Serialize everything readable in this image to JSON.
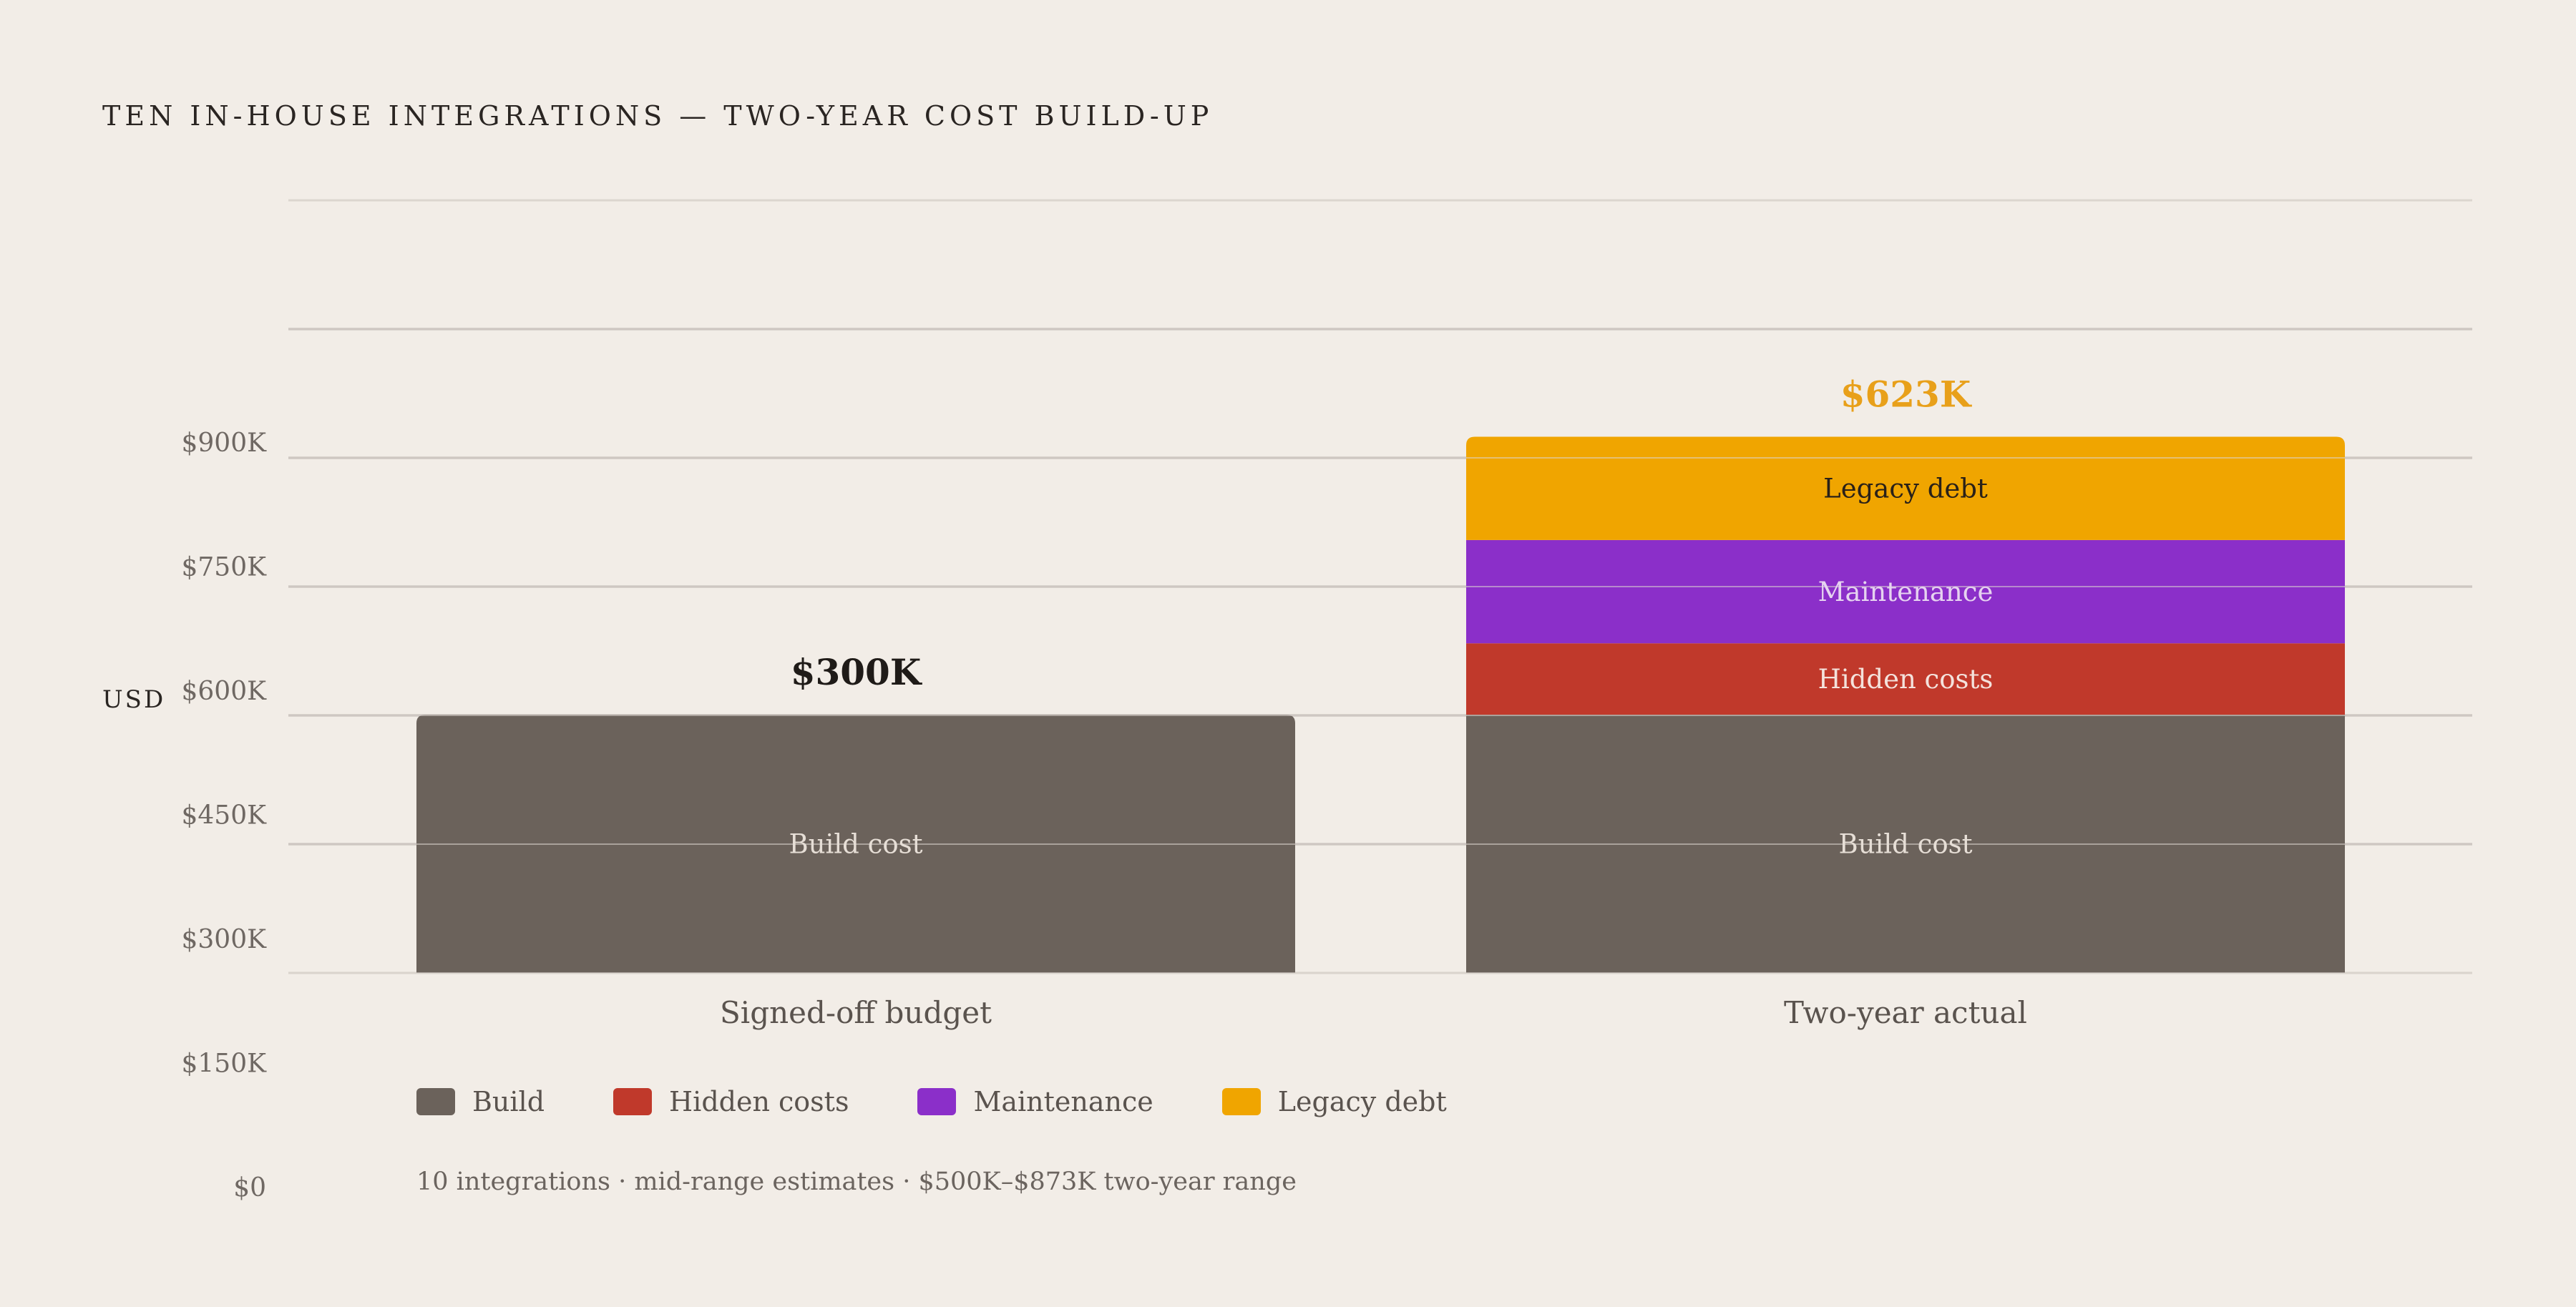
{
  "title": "TEN IN-HOUSE INTEGRATIONS — TWO-YEAR COST BUILD-UP",
  "y_unit": "USD",
  "note": "10 integrations · mid-range estimates · $500K–$873K two-year range",
  "legend": [
    {
      "label": "Build",
      "color": "#6b625b"
    },
    {
      "label": "Hidden costs",
      "color": "#c0392b"
    },
    {
      "label": "Maintenance",
      "color": "#8b2fc9"
    },
    {
      "label": "Legacy debt",
      "color": "#f0a500"
    }
  ],
  "chart_data": {
    "type": "bar",
    "stacked": true,
    "title": "TEN IN-HOUSE INTEGRATIONS — TWO-YEAR COST BUILD-UP",
    "ylabel": "USD",
    "ylim": [
      0,
      1200
    ],
    "y_ticks": [
      {
        "value": 0,
        "label": "$0"
      },
      {
        "value": 150,
        "label": "$150K"
      },
      {
        "value": 300,
        "label": "$300K"
      },
      {
        "value": 450,
        "label": "$450K"
      },
      {
        "value": 600,
        "label": "$600K"
      },
      {
        "value": 750,
        "label": "$750K"
      },
      {
        "value": 900,
        "label": "$900K"
      }
    ],
    "gridlines": [
      300,
      450,
      600,
      750,
      900,
      1050,
      1200
    ],
    "categories": [
      "Signed-off budget",
      "Two-year actual"
    ],
    "series": [
      {
        "name": "Build",
        "color": "#6b625b",
        "segment_label": "Build cost",
        "label_color": "#e6ded6",
        "values": [
          300,
          300
        ]
      },
      {
        "name": "Hidden costs",
        "color": "#c0392b",
        "segment_label": "Hidden costs",
        "label_color": "#f4e2dc",
        "values": [
          0,
          83
        ]
      },
      {
        "name": "Maintenance",
        "color": "#8b2fc9",
        "segment_label": "Maintenance",
        "label_color": "#e6d3f0",
        "values": [
          0,
          120
        ]
      },
      {
        "name": "Legacy debt",
        "color": "#f0a500",
        "segment_label": "Legacy debt",
        "label_color": "#2a2118",
        "values": [
          0,
          120
        ]
      }
    ],
    "totals": [
      {
        "label": "$300K",
        "color": "#1f1b18"
      },
      {
        "label": "$623K",
        "color": "#e8a01a"
      }
    ]
  }
}
